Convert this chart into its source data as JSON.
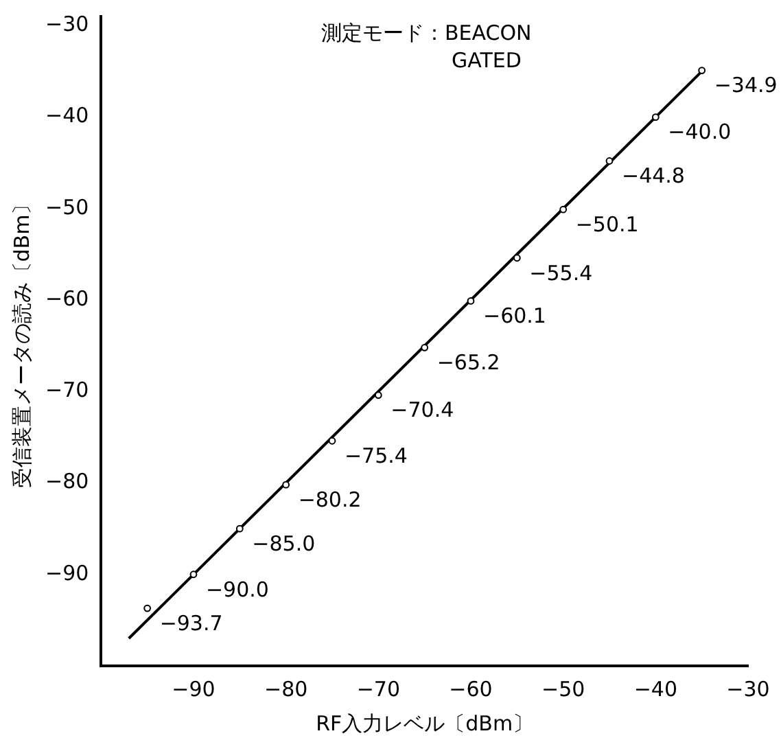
{
  "chart_data": {
    "type": "scatter",
    "xlabel": "RF入力レベル〔dBm〕",
    "ylabel": "受信装置メータの読み〔dBm〕",
    "annotations": [
      "測定モード：BEACON GATED"
    ],
    "xlim": [
      -100,
      -30
    ],
    "xticks": [
      -90,
      -80,
      -70,
      -60,
      -50,
      -40,
      -30
    ],
    "ylim": [
      -100,
      -29
    ],
    "yticks": [
      -90,
      -80,
      -70,
      -60,
      -50,
      -40,
      -30
    ],
    "grid": false,
    "legend": false,
    "series": [
      {
        "marker": "circle",
        "color": "#000000",
        "x": [
          -95,
          -90,
          -85,
          -80,
          -75,
          -70,
          -65,
          -60,
          -55,
          -50,
          -45,
          -40,
          -35
        ],
        "values": [
          -93.7,
          -90.0,
          -85.0,
          -80.2,
          -75.4,
          -70.4,
          -65.2,
          -60.1,
          -55.4,
          -50.1,
          -44.8,
          -40.0,
          -34.9
        ],
        "value_labels": [
          "−93.7",
          "−90.0",
          "−85.0",
          "−80.2",
          "−75.4",
          "−70.4",
          "−65.2",
          "−60.1",
          "−55.4",
          "−50.1",
          "−44.8",
          "−40.0",
          "−34.9"
        ]
      },
      {
        "type": "line",
        "color": "#000000",
        "x": [
          -97,
          -35
        ],
        "values": [
          -97,
          -35
        ],
        "line_style": "solid"
      }
    ]
  }
}
